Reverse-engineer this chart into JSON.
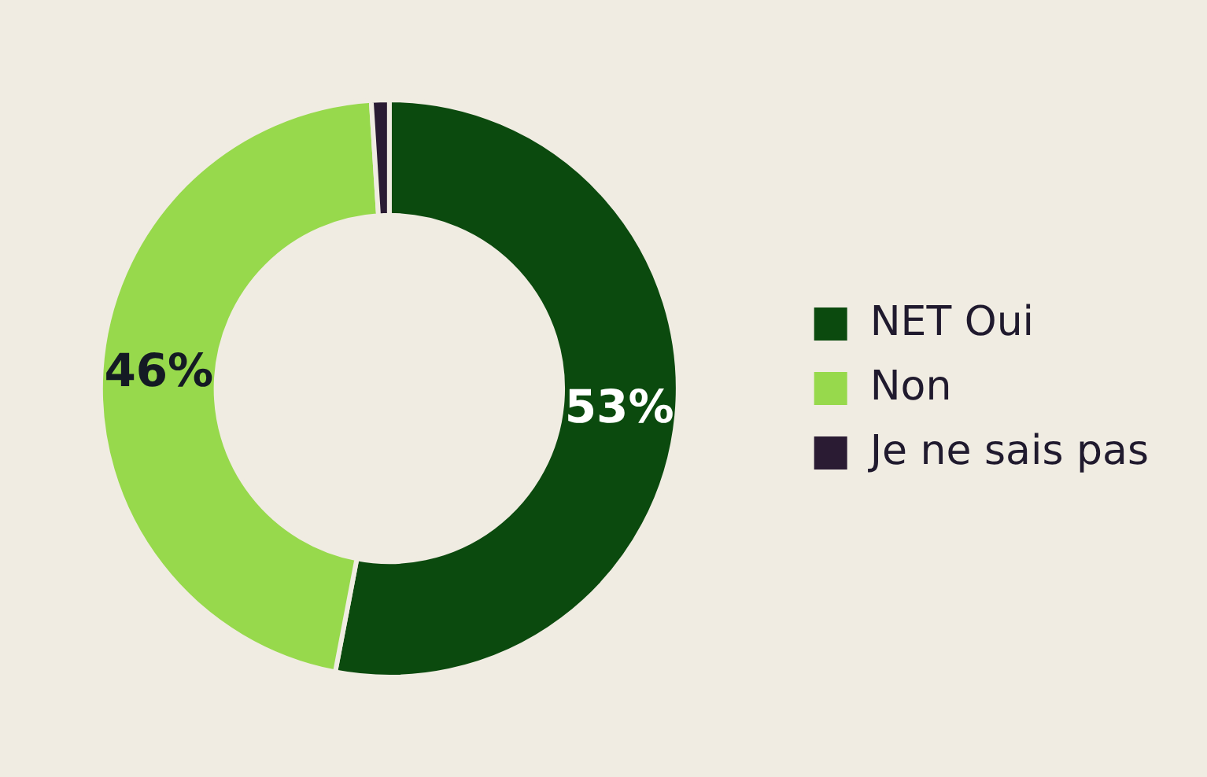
{
  "chart_data": {
    "type": "donut",
    "categories": [
      "NET Oui",
      "Non",
      "Je ne sais pas"
    ],
    "values": [
      53,
      46,
      1
    ],
    "colors": [
      "#0b4a0e",
      "#97d94c",
      "#2a1b33"
    ],
    "value_labels": [
      "53%",
      "46%",
      null
    ],
    "legend": "right"
  }
}
